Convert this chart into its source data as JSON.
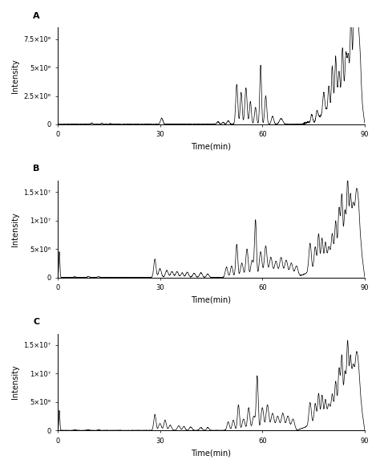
{
  "panels": [
    "A",
    "B",
    "C"
  ],
  "xlim": [
    0,
    90
  ],
  "xticks": [
    0,
    30,
    60,
    90
  ],
  "xlabel": "Time(min)",
  "ylabel": "Intensity",
  "panel_A": {
    "ylim": [
      0,
      8500000.0
    ],
    "yticks": [
      0,
      2500000,
      5000000,
      7500000
    ],
    "yticklabels": [
      "0",
      "2.5×10⁶",
      "5×10⁶",
      "7.5×10⁶"
    ]
  },
  "panel_B": {
    "ylim": [
      0,
      17000000.0
    ],
    "yticks": [
      0,
      5000000,
      10000000,
      15000000
    ],
    "yticklabels": [
      "0",
      "5×10⁶",
      "1×10⁷",
      "1.5×10⁷"
    ]
  },
  "panel_C": {
    "ylim": [
      0,
      17000000.0
    ],
    "yticks": [
      0,
      5000000,
      10000000,
      15000000
    ],
    "yticklabels": [
      "0",
      "5×10⁶",
      "1×10⁷",
      "1.5×10⁷"
    ]
  },
  "line_color": "#000000",
  "background_color": "#ffffff",
  "label_fontsize": 7,
  "tick_fontsize": 6,
  "panel_label_fontsize": 8
}
